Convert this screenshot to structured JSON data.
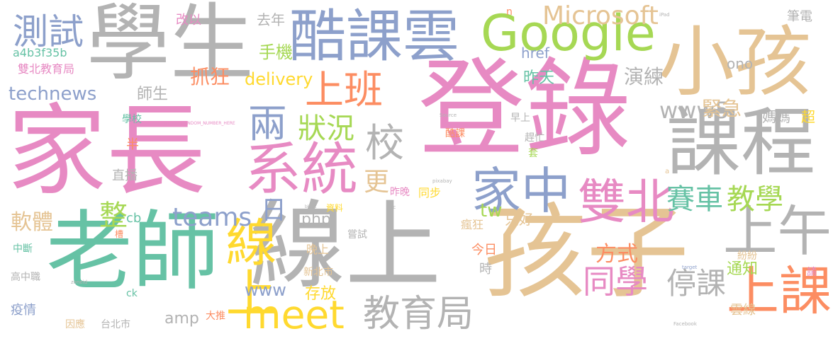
{
  "palette": {
    "pink": "#e78ac3",
    "gray": "#b3b3b3",
    "tan": "#e5c494",
    "blue": "#8da0cb",
    "green": "#66c2a5",
    "orange": "#fc8d62",
    "lime": "#a6d854",
    "yellow": "#ffd92f"
  },
  "words": [
    {
      "text": "登錄",
      "color": "pink"
    },
    {
      "text": "家長",
      "color": "pink"
    },
    {
      "text": "學生",
      "color": "gray"
    },
    {
      "text": "老師",
      "color": "green"
    },
    {
      "text": "線上",
      "color": "gray"
    },
    {
      "text": "孩子",
      "color": "tan"
    },
    {
      "text": "小孩",
      "color": "tan"
    },
    {
      "text": "課程",
      "color": "gray"
    },
    {
      "text": "酷課雲",
      "color": "blue"
    },
    {
      "text": "Google",
      "color": "lime"
    },
    {
      "text": "系統",
      "color": "pink"
    },
    {
      "text": "上午",
      "color": "gray"
    },
    {
      "text": "上課",
      "color": "orange"
    },
    {
      "text": "家中",
      "color": "blue"
    },
    {
      "text": "線上",
      "color": "yellow"
    },
    {
      "text": "雙北",
      "color": "pink"
    },
    {
      "text": "meet",
      "color": "yellow"
    },
    {
      "text": "教育局",
      "color": "gray"
    },
    {
      "text": "上班",
      "color": "orange"
    },
    {
      "text": "Microsoft",
      "color": "tan"
    },
    {
      "text": "測試",
      "color": "blue"
    },
    {
      "text": "兩",
      "color": "blue"
    },
    {
      "text": "校",
      "color": "gray"
    },
    {
      "text": "狀況",
      "color": "lime"
    },
    {
      "text": "同學",
      "color": "pink"
    },
    {
      "text": "停課",
      "color": "gray"
    },
    {
      "text": "賽車",
      "color": "green"
    },
    {
      "text": "教學",
      "color": "lime"
    },
    {
      "text": "teams",
      "color": "blue"
    },
    {
      "text": "www5",
      "color": "gray"
    },
    {
      "text": "technews",
      "color": "blue"
    },
    {
      "text": "演練",
      "color": "gray"
    },
    {
      "text": "緊急",
      "color": "tan"
    },
    {
      "text": "方式",
      "color": "orange"
    },
    {
      "text": "軟體",
      "color": "tan"
    },
    {
      "text": "整",
      "color": "lime"
    },
    {
      "text": "日",
      "color": "blue"
    },
    {
      "text": "更",
      "color": "tan"
    },
    {
      "text": "delivery",
      "color": "yellow"
    },
    {
      "text": "抓狂",
      "color": "orange"
    },
    {
      "text": "手機",
      "color": "lime"
    },
    {
      "text": "www",
      "color": "blue"
    },
    {
      "text": "存放",
      "color": "yellow"
    },
    {
      "text": "amp",
      "color": "gray"
    },
    {
      "text": "php",
      "color": "gray"
    },
    {
      "text": "通知",
      "color": "lime"
    },
    {
      "text": "雲線",
      "color": "tan"
    },
    {
      "text": "tw",
      "color": "lime"
    },
    {
      "text": "只好",
      "color": "tan"
    },
    {
      "text": "昨天",
      "color": "green"
    },
    {
      "text": "師生",
      "color": "gray"
    },
    {
      "text": "a4b3f35b",
      "color": "green"
    },
    {
      "text": "雙北教育局",
      "color": "pink"
    },
    {
      "text": "去年",
      "color": "gray"
    },
    {
      "text": "改以",
      "color": "pink"
    },
    {
      "text": "筆電",
      "color": "gray"
    },
    {
      "text": "ono",
      "color": "gray"
    },
    {
      "text": "href",
      "color": "blue"
    },
    {
      "text": "媽媽",
      "color": "gray"
    },
    {
      "text": "超",
      "color": "yellow"
    },
    {
      "text": "學校",
      "color": "green"
    },
    {
      "text": "早上",
      "color": "gray"
    },
    {
      "text": "趕忙",
      "color": "gray"
    },
    {
      "text": "半",
      "color": "orange"
    },
    {
      "text": "直播",
      "color": "gray"
    },
    {
      "text": "套",
      "color": "lime"
    },
    {
      "text": "酷課",
      "color": "orange"
    },
    {
      "text": "cb",
      "color": "green"
    },
    {
      "text": "昨晚",
      "color": "pink"
    },
    {
      "text": "同步",
      "color": "yellow"
    },
    {
      "text": "瘋狂",
      "color": "tan"
    },
    {
      "text": "嘗試",
      "color": "gray"
    },
    {
      "text": "晚上",
      "color": "tan"
    },
    {
      "text": "今日",
      "color": "orange"
    },
    {
      "text": "時",
      "color": "gray"
    },
    {
      "text": "新北市",
      "color": "tan"
    },
    {
      "text": "資料",
      "color": "yellow"
    },
    {
      "text": "中斷",
      "color": "green"
    },
    {
      "text": "槽",
      "color": "orange"
    },
    {
      "text": "高中職",
      "color": "gray"
    },
    {
      "text": "ck",
      "color": "green"
    },
    {
      "text": "疫情",
      "color": "blue"
    },
    {
      "text": "因應",
      "color": "tan"
    },
    {
      "text": "台北市",
      "color": "gray"
    },
    {
      "text": "大推",
      "color": "orange"
    },
    {
      "text": "紛紛",
      "color": "tan"
    },
    {
      "text": "請",
      "color": "pink"
    },
    {
      "text": "INSERT_RANDOM_NUMBER_HERE",
      "color": "pink"
    },
    {
      "text": "_blank",
      "color": "gray"
    },
    {
      "text": "pixabay",
      "color": "gray"
    },
    {
      "text": "Source",
      "color": "gray"
    },
    {
      "text": "Facebook",
      "color": "gray"
    },
    {
      "text": "iPad",
      "color": "gray"
    },
    {
      "text": "target",
      "color": "blue"
    },
    {
      "text": "zoneid",
      "color": "gray"
    },
    {
      "text": "src",
      "color": "gray"
    },
    {
      "text": "n",
      "color": "orange"
    },
    {
      "text": "a",
      "color": "tan"
    }
  ]
}
